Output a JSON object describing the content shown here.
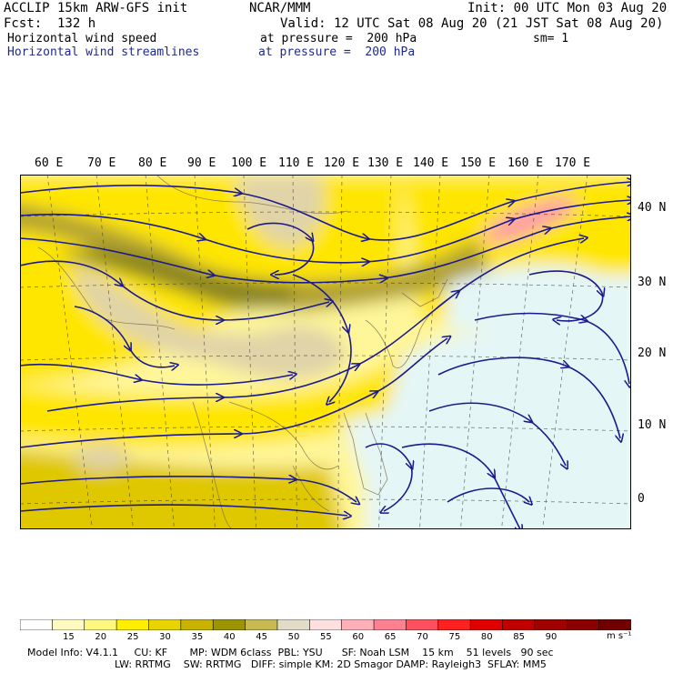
{
  "header": {
    "model": "ACCLIP 15km ARW-GFS init",
    "org": "NCAR/MMM",
    "init": "Init: 00 UTC Mon 03 Aug 20",
    "fcst": "Fcst:  132 h",
    "valid": "Valid: 12 UTC Sat 08 Aug 20 (21 JST Sat 08 Aug 20)",
    "field1_name": "Horizontal wind speed",
    "field1_level": "at pressure =  200 hPa",
    "sm": "sm= 1",
    "field2_name": "Horizontal wind streamlines",
    "field2_level": "at pressure =  200 hPa"
  },
  "axes": {
    "lon_labels": [
      "60 E",
      "70 E",
      "80 E",
      "90 E",
      "100 E",
      "110 E",
      "120 E",
      "130 E",
      "140 E",
      "150 E",
      "160 E",
      "170 E"
    ],
    "lat_labels": [
      "40 N",
      "30 N",
      "20 N",
      "10 N",
      "0"
    ]
  },
  "colorbar": {
    "ticks": [
      "15",
      "20",
      "25",
      "30",
      "35",
      "40",
      "45",
      "50",
      "55",
      "60",
      "65",
      "70",
      "75",
      "80",
      "85",
      "90"
    ],
    "unit": "m s⁻¹",
    "colors": [
      "#ffffff",
      "#fffbc0",
      "#fff780",
      "#ffee00",
      "#e8d400",
      "#c8b400",
      "#9c9400",
      "#c8b850",
      "#e0dcc8",
      "#ffe0e0",
      "#ffb0b8",
      "#ff8090",
      "#ff5060",
      "#ff2020",
      "#e00000",
      "#c00000",
      "#a00000",
      "#8a0000",
      "#700000"
    ]
  },
  "map_colors": {
    "calm": "#e4f6f6",
    "light_yellow": "#fff69a",
    "yellow": "#ffe600",
    "gold": "#e0c800",
    "olive": "#b0a030",
    "dark_olive": "#8a8420",
    "tan": "#e0d4a8",
    "pink": "#ff9aa8",
    "streamline": "#1a1a8c",
    "coast": "#7a6e50"
  },
  "footer": {
    "line1": "Model Info: V4.1.1     CU: KF       MP: WDM 6class  PBL: YSU      SF: Noah LSM    15 km    51 levels   90 sec",
    "line2": "LW: RRTMG    SW: RRTMG   DIFF: simple KM: 2D Smagor DAMP: Rayleigh3  SFLAY: MM5"
  }
}
